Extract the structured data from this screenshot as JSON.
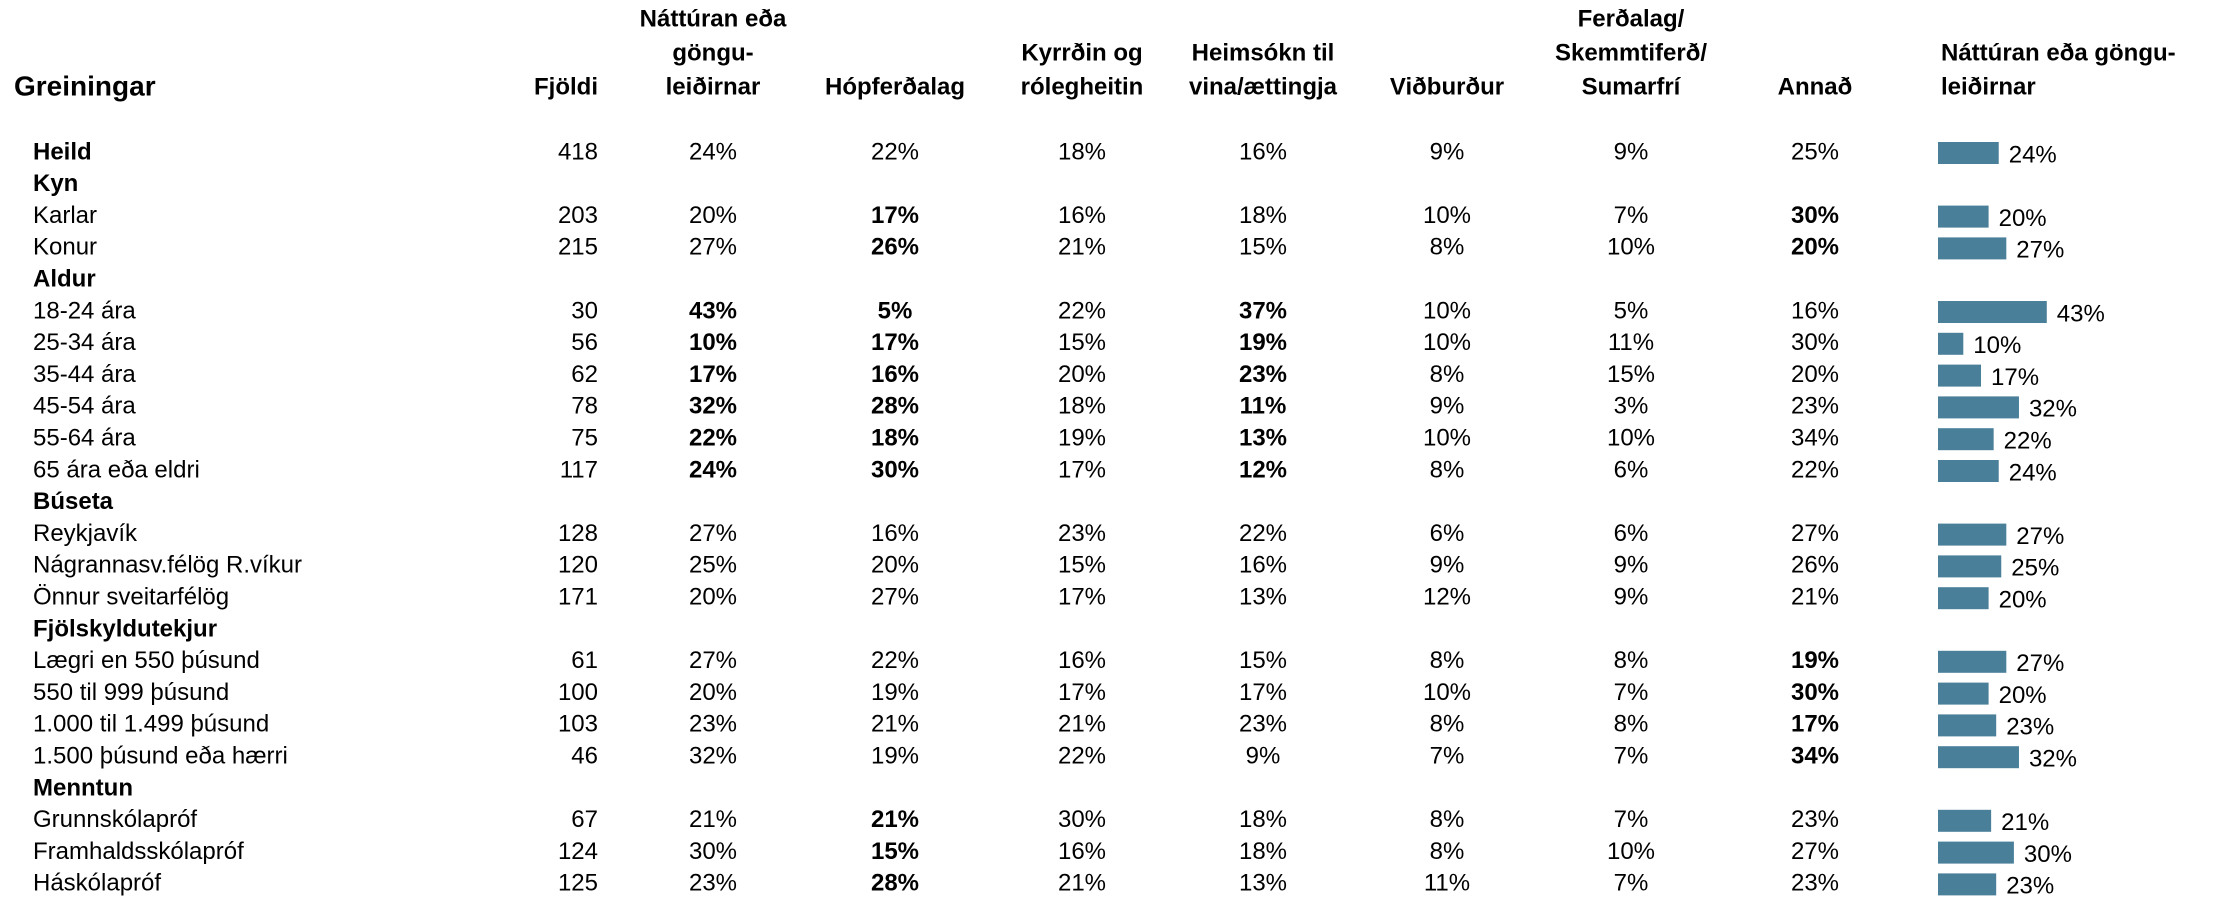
{
  "table": {
    "title": "Greiningar",
    "columns": [
      [
        "Fjöldi"
      ],
      [
        "Náttúran eða",
        "göngu-",
        "leiðirnar"
      ],
      [
        "Hópferðalag"
      ],
      [
        "Kyrrðin og",
        "rólegheitin"
      ],
      [
        "Heimsókn til",
        "vina/ættingja"
      ],
      [
        "Viðburður"
      ],
      [
        "Ferðalag/",
        "Skemmtiferð/",
        "Sumarfrí"
      ],
      [
        "Annað"
      ]
    ],
    "bar_header": [
      "Náttúran eða göngu-",
      "leiðirnar"
    ],
    "bar_column": 1,
    "rows": [
      {
        "label": "Heild",
        "bold": true,
        "cells": [
          418,
          "24%",
          "22%",
          "18%",
          "16%",
          "9%",
          "9%",
          "25%"
        ],
        "highlight": []
      },
      {
        "label": "Kyn"
      },
      {
        "label": "Karlar",
        "cells": [
          203,
          "20%",
          "17%",
          "16%",
          "18%",
          "10%",
          "7%",
          "30%"
        ],
        "highlight": [
          2,
          7
        ]
      },
      {
        "label": "Konur",
        "cells": [
          215,
          "27%",
          "26%",
          "21%",
          "15%",
          "8%",
          "10%",
          "20%"
        ],
        "highlight": [
          2,
          7
        ]
      },
      {
        "label": "Aldur"
      },
      {
        "label": "18-24 ára",
        "cells": [
          30,
          "43%",
          "5%",
          "22%",
          "37%",
          "10%",
          "5%",
          "16%"
        ],
        "highlight": [
          1,
          2,
          4
        ]
      },
      {
        "label": "25-34 ára",
        "cells": [
          56,
          "10%",
          "17%",
          "15%",
          "19%",
          "10%",
          "11%",
          "30%"
        ],
        "highlight": [
          1,
          2,
          4
        ]
      },
      {
        "label": "35-44 ára",
        "cells": [
          62,
          "17%",
          "16%",
          "20%",
          "23%",
          "8%",
          "15%",
          "20%"
        ],
        "highlight": [
          1,
          2,
          4
        ]
      },
      {
        "label": "45-54 ára",
        "cells": [
          78,
          "32%",
          "28%",
          "18%",
          "11%",
          "9%",
          "3%",
          "23%"
        ],
        "highlight": [
          1,
          2,
          4
        ]
      },
      {
        "label": "55-64 ára",
        "cells": [
          75,
          "22%",
          "18%",
          "19%",
          "13%",
          "10%",
          "10%",
          "34%"
        ],
        "highlight": [
          1,
          2,
          4
        ]
      },
      {
        "label": "65 ára eða eldri",
        "cells": [
          117,
          "24%",
          "30%",
          "17%",
          "12%",
          "8%",
          "6%",
          "22%"
        ],
        "highlight": [
          1,
          2,
          4
        ]
      },
      {
        "label": "Búseta"
      },
      {
        "label": "Reykjavík",
        "cells": [
          128,
          "27%",
          "16%",
          "23%",
          "22%",
          "6%",
          "6%",
          "27%"
        ],
        "highlight": []
      },
      {
        "label": "Nágrannasv.félög R.víkur",
        "cells": [
          120,
          "25%",
          "20%",
          "15%",
          "16%",
          "9%",
          "9%",
          "26%"
        ],
        "highlight": []
      },
      {
        "label": "Önnur sveitarfélög",
        "cells": [
          171,
          "20%",
          "27%",
          "17%",
          "13%",
          "12%",
          "9%",
          "21%"
        ],
        "highlight": []
      },
      {
        "label": "Fjölskyldutekjur"
      },
      {
        "label": "Lægri en 550 þúsund",
        "cells": [
          61,
          "27%",
          "22%",
          "16%",
          "15%",
          "8%",
          "8%",
          "19%"
        ],
        "highlight": [
          7
        ]
      },
      {
        "label": "550 til 999 þúsund",
        "cells": [
          100,
          "20%",
          "19%",
          "17%",
          "17%",
          "10%",
          "7%",
          "30%"
        ],
        "highlight": [
          7
        ]
      },
      {
        "label": "1.000 til 1.499 þúsund",
        "cells": [
          103,
          "23%",
          "21%",
          "21%",
          "23%",
          "8%",
          "8%",
          "17%"
        ],
        "highlight": [
          7
        ]
      },
      {
        "label": "1.500 þúsund eða hærri",
        "cells": [
          46,
          "32%",
          "19%",
          "22%",
          "9%",
          "7%",
          "7%",
          "34%"
        ],
        "highlight": [
          7
        ]
      },
      {
        "label": "Menntun"
      },
      {
        "label": "Grunnskólapróf",
        "cells": [
          67,
          "21%",
          "21%",
          "30%",
          "18%",
          "8%",
          "7%",
          "23%"
        ],
        "highlight": [
          2
        ]
      },
      {
        "label": "Framhaldsskólapróf",
        "cells": [
          124,
          "30%",
          "15%",
          "16%",
          "18%",
          "8%",
          "10%",
          "27%"
        ],
        "highlight": [
          2
        ]
      },
      {
        "label": "Háskólapróf",
        "cells": [
          125,
          "23%",
          "28%",
          "21%",
          "13%",
          "11%",
          "7%",
          "23%"
        ],
        "highlight": [
          2
        ]
      }
    ]
  }
}
